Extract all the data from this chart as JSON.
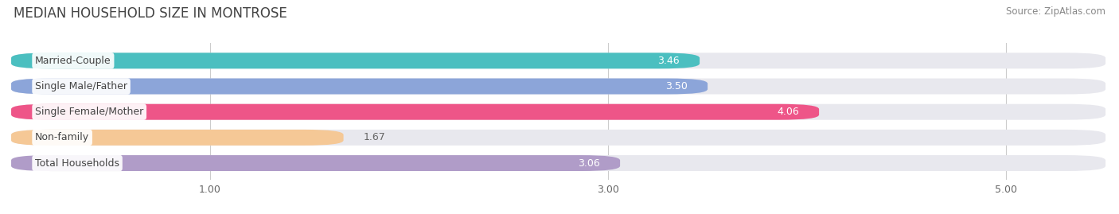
{
  "title": "MEDIAN HOUSEHOLD SIZE IN MONTROSE",
  "source": "Source: ZipAtlas.com",
  "categories": [
    "Married-Couple",
    "Single Male/Father",
    "Single Female/Mother",
    "Non-family",
    "Total Households"
  ],
  "values": [
    3.46,
    3.5,
    4.06,
    1.67,
    3.06
  ],
  "bar_colors": [
    "#4BBFC0",
    "#8CA5D9",
    "#EE5588",
    "#F5C896",
    "#B09CC8"
  ],
  "bar_bg_color": "#E8E8EE",
  "xticks": [
    1.0,
    3.0,
    5.0
  ],
  "xtick_labels": [
    "1.00",
    "3.00",
    "5.00"
  ],
  "xmax": 5.5,
  "label_color_inside": "#FFFFFF",
  "label_color_outside": "#666666",
  "title_fontsize": 12,
  "source_fontsize": 8.5,
  "bar_label_fontsize": 9,
  "category_fontsize": 9,
  "tick_fontsize": 9,
  "background_color": "#FFFFFF",
  "bar_height": 0.62,
  "outside_threshold": 2.2,
  "grid_color": "#CCCCCC",
  "category_text_color": "#444444"
}
